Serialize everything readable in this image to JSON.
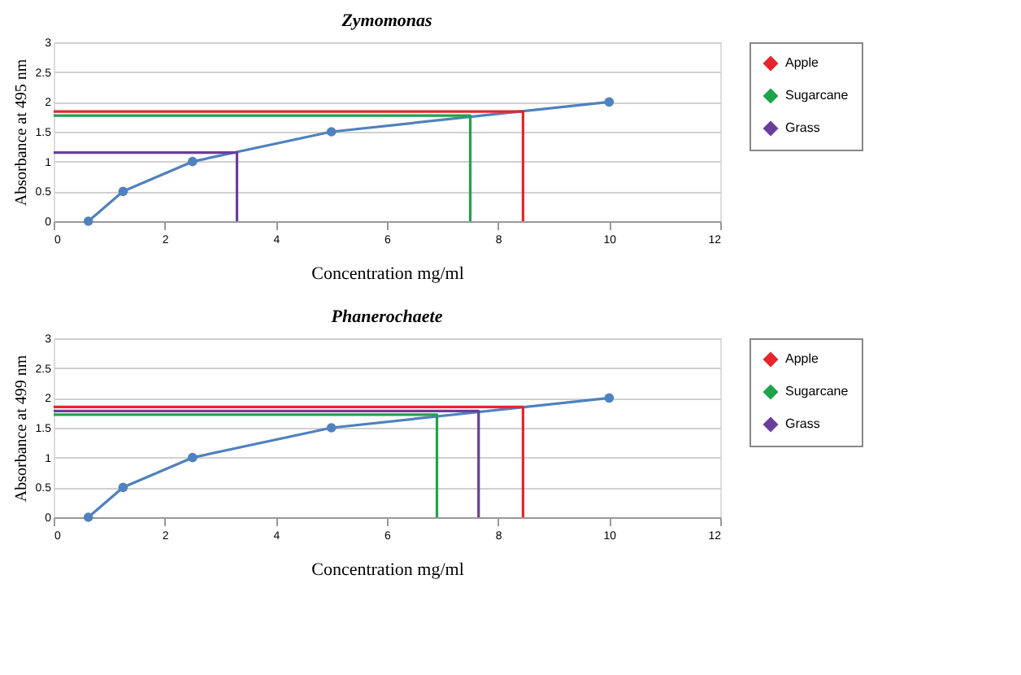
{
  "chart_data": [
    {
      "type": "line",
      "title": "Zymomonas",
      "xlabel": "Concentration mg/ml",
      "ylabel": "Absorbance at 495 nm",
      "xlim": [
        0,
        12
      ],
      "xticks": [
        0,
        2,
        4,
        6,
        8,
        10,
        12
      ],
      "ylim": [
        0,
        3
      ],
      "yticks": [
        0,
        0.5,
        1,
        1.5,
        2,
        2.5,
        3
      ],
      "grid": "y",
      "legend": "right",
      "line_style": "solid",
      "series": [
        {
          "color": "#4f81bd",
          "marker": "circle",
          "x": [
            0.625,
            1.25,
            2.5,
            5,
            10
          ],
          "values": [
            0,
            0.5,
            1,
            1.5,
            2
          ]
        },
        {
          "name": "Apple",
          "color": "#e8242b",
          "marker": "none",
          "x": [
            0,
            8.45,
            8.45
          ],
          "values": [
            1.84,
            1.84,
            0
          ]
        },
        {
          "name": "Sugarcane",
          "color": "#1fa34a",
          "marker": "none",
          "x": [
            0,
            7.5,
            7.5
          ],
          "values": [
            1.77,
            1.77,
            0
          ]
        },
        {
          "name": "Grass",
          "color": "#6a3d9a",
          "marker": "none",
          "x": [
            0,
            3.3,
            3.3
          ],
          "values": [
            1.15,
            1.15,
            0
          ]
        }
      ]
    },
    {
      "type": "line",
      "title": "Phanerochaete",
      "xlabel": "Concentration mg/ml",
      "ylabel": "Absorbance at 499 nm",
      "xlim": [
        0,
        12
      ],
      "xticks": [
        0,
        2,
        4,
        6,
        8,
        10,
        12
      ],
      "ylim": [
        0,
        3
      ],
      "yticks": [
        0,
        0.5,
        1,
        1.5,
        2,
        2.5,
        3
      ],
      "grid": "y",
      "legend": "right",
      "line_style": "solid",
      "series": [
        {
          "color": "#4f81bd",
          "marker": "circle",
          "x": [
            0.625,
            1.25,
            2.5,
            5,
            10
          ],
          "values": [
            0,
            0.5,
            1,
            1.5,
            2
          ]
        },
        {
          "name": "Apple",
          "color": "#e8242b",
          "marker": "none",
          "x": [
            0,
            8.45,
            8.45
          ],
          "values": [
            1.85,
            1.85,
            0
          ]
        },
        {
          "name": "Sugarcane",
          "color": "#1fa34a",
          "marker": "none",
          "x": [
            0,
            6.9,
            6.9
          ],
          "values": [
            1.72,
            1.72,
            0
          ]
        },
        {
          "name": "Grass",
          "color": "#6a3d9a",
          "marker": "none",
          "x": [
            0,
            7.65,
            7.65
          ],
          "values": [
            1.78,
            1.78,
            0
          ]
        }
      ]
    }
  ]
}
